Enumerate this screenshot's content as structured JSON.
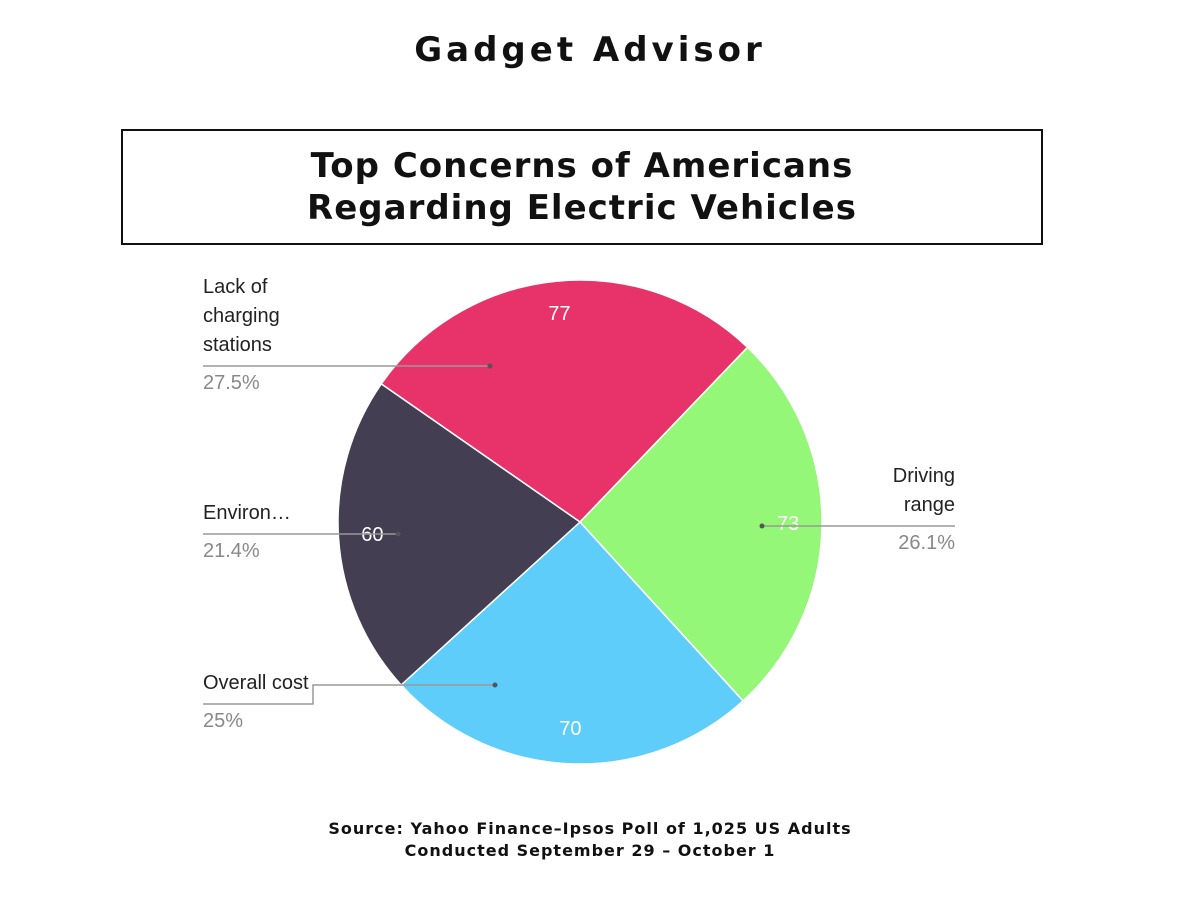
{
  "header": {
    "title": "Gadget Advisor"
  },
  "chart_data": {
    "type": "pie",
    "title": "Top Concerns of Americans Regarding Electric Vehicles",
    "categories": [
      "Lack of charging stations",
      "Driving range",
      "Overall cost",
      "Environ…"
    ],
    "values": [
      77,
      73,
      70,
      60
    ],
    "percentages": [
      27.5,
      26.1,
      25,
      21.4
    ],
    "percentage_labels": [
      "27.5%",
      "26.1%",
      "25%",
      "21.4%"
    ],
    "colors": [
      "#e8336a",
      "#94f777",
      "#5ecdf9",
      "#433e51"
    ],
    "source": [
      "Source: Yahoo Finance–Ipsos Poll of 1,025 US Adults",
      "Conducted September 29 – October 1"
    ]
  }
}
